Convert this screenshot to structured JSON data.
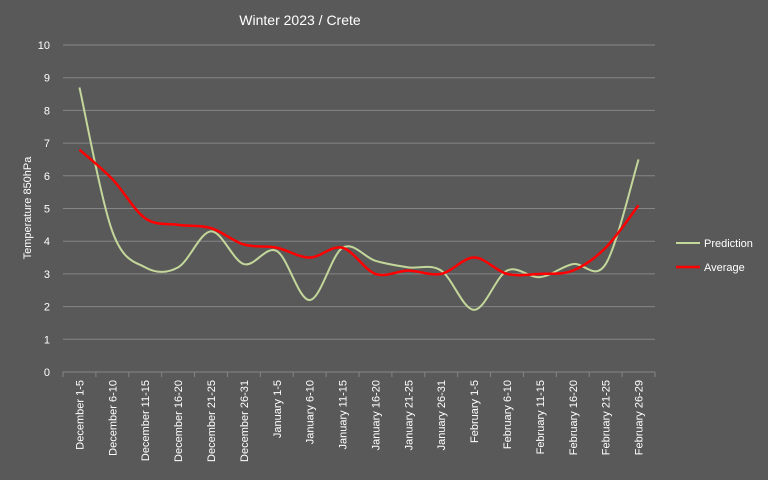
{
  "chart_data": {
    "type": "line",
    "title": "Winter 2023 /  Crete",
    "xlabel": "",
    "ylabel": "Temperature  850hPa",
    "ylim": [
      0,
      10
    ],
    "yticks": [
      "0",
      "1",
      "2",
      "3",
      "4",
      "5",
      "6",
      "7",
      "8",
      "9",
      "10"
    ],
    "grid": true,
    "legend_position": "right",
    "categories": [
      "December 1-5",
      "December 6-10",
      "December 11-15",
      "December 16-20",
      "December 21-25",
      "December 26-31",
      "January 1-5",
      "January 6-10",
      "January 11-15",
      "January 16-20",
      "January 21-25",
      "January 26-31",
      "February 1-5",
      "February 6-10",
      "February 11-15",
      "February 16-20",
      "February 21-25",
      "February 26-29"
    ],
    "series": [
      {
        "name": "Prediction",
        "color": "#c4d79b",
        "values": [
          8.7,
          4.3,
          3.2,
          3.2,
          4.3,
          3.3,
          3.7,
          2.2,
          3.8,
          3.4,
          3.2,
          3.1,
          1.9,
          3.1,
          2.9,
          3.3,
          3.3,
          6.5
        ]
      },
      {
        "name": "Average",
        "color": "#ff0000",
        "values": [
          6.8,
          5.9,
          4.7,
          4.5,
          4.4,
          3.9,
          3.8,
          3.5,
          3.8,
          3.0,
          3.1,
          3.0,
          3.5,
          3.0,
          3.0,
          3.1,
          3.8,
          5.1
        ]
      }
    ]
  }
}
